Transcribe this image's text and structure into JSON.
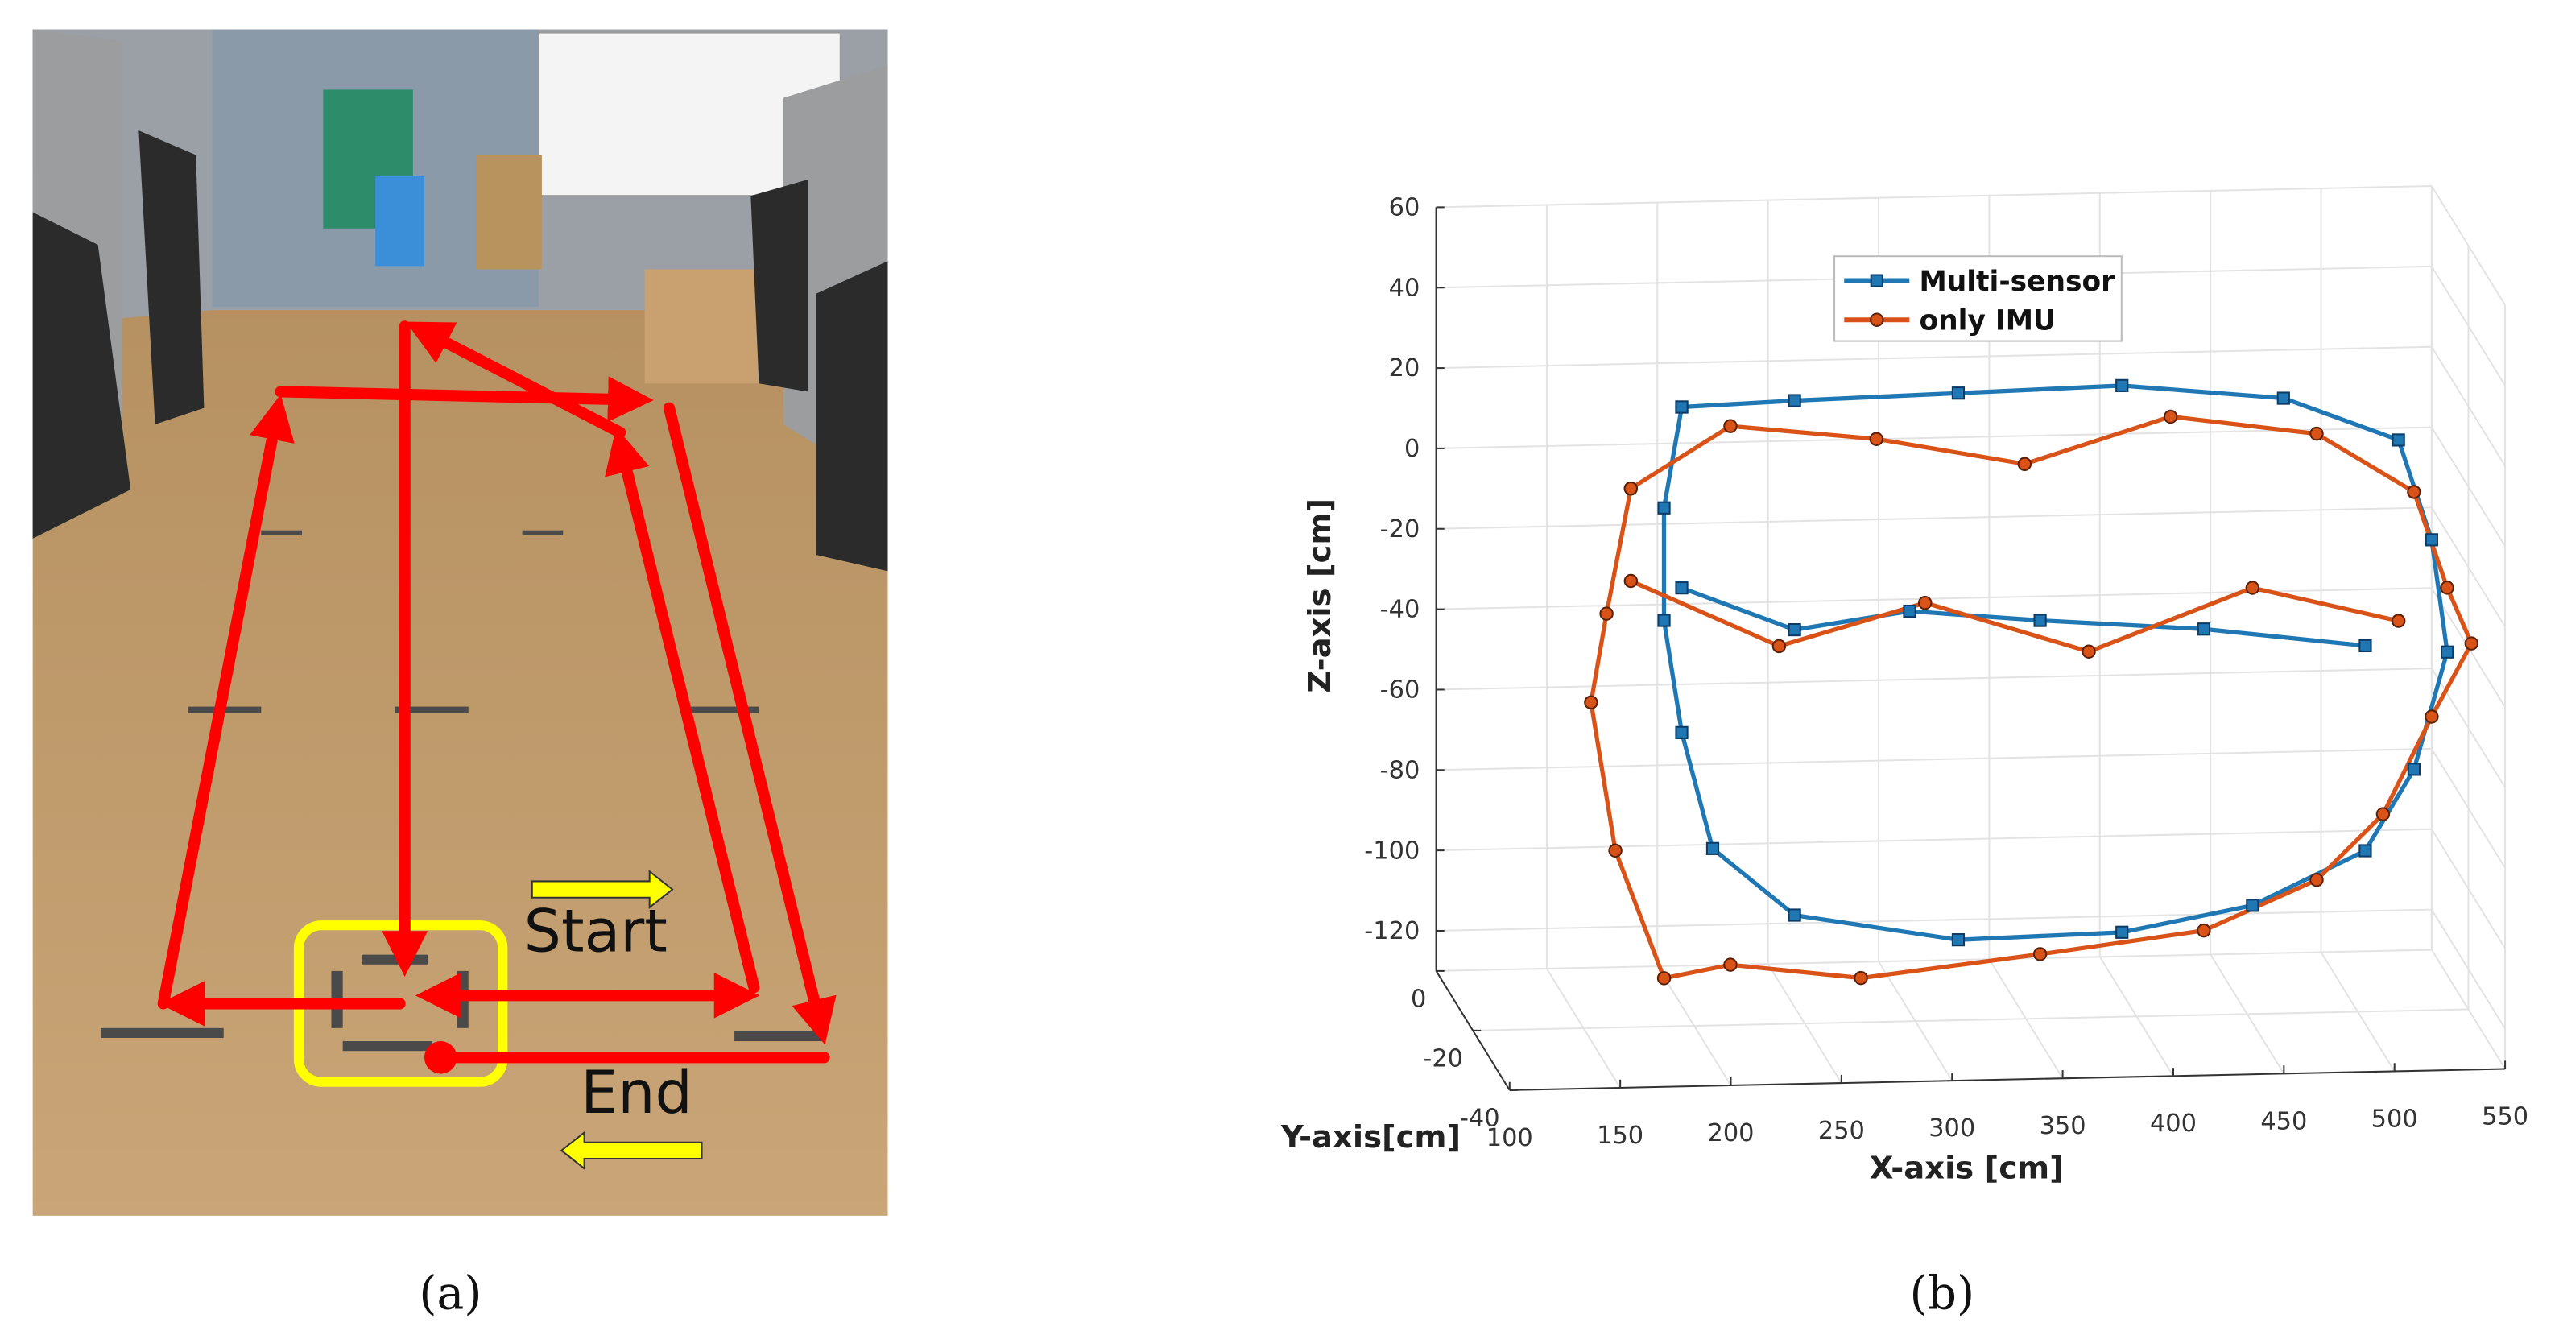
{
  "panel_a": {
    "caption": "(a)",
    "start_label": "Start",
    "end_label": "End"
  },
  "chart_data": {
    "type": "line3d",
    "caption": "(b)",
    "xlabel": "X-axis [cm]",
    "ylabel": "Y-axis[cm]",
    "zlabel": "Z-axis [cm]",
    "xlim": [
      100,
      550
    ],
    "ylim": [
      -40,
      0
    ],
    "zlim": [
      -130,
      60
    ],
    "xticks": [
      100,
      150,
      200,
      250,
      300,
      350,
      400,
      450,
      500,
      550
    ],
    "yticks": [
      -40,
      -20,
      0
    ],
    "zticks": [
      -120,
      -100,
      -80,
      -60,
      -40,
      -20,
      0,
      20,
      40,
      60
    ],
    "grid": true,
    "legend": "top",
    "series": [
      {
        "name": "Multi-sensor",
        "color": "#1f77b4",
        "marker": "square",
        "x": [
          211,
          262,
          336,
          410,
          483,
          535,
          550,
          557,
          542,
          520,
          469,
          410,
          336,
          262,
          225,
          211,
          203,
          203,
          211,
          null,
          211,
          262,
          314,
          373,
          447,
          520
        ],
        "values": [
          9,
          10,
          11,
          12,
          8,
          -3,
          -28,
          -56,
          -85,
          -105,
          -118,
          -124,
          -125,
          -118,
          -101,
          -72,
          -44,
          -16,
          9,
          null,
          -36,
          -47,
          -43,
          -46,
          -49,
          -54
        ]
      },
      {
        "name": "only IMU",
        "color": "#d95319",
        "marker": "circle",
        "x": [
          188,
          233,
          299,
          366,
          432,
          498,
          542,
          557,
          568,
          550,
          528,
          498,
          447,
          373,
          292,
          233,
          203,
          181,
          170,
          177,
          188,
          null,
          188,
          255,
          321,
          395,
          469,
          535
        ],
        "values": [
          -11,
          4,
          0,
          -7,
          4,
          -1,
          -16,
          -40,
          -54,
          -72,
          -96,
          -112,
          -124,
          -129,
          -134,
          -130,
          -133,
          -101,
          -64,
          -42,
          -11,
          null,
          -34,
          -51,
          -41,
          -54,
          -39,
          -48
        ]
      }
    ]
  }
}
